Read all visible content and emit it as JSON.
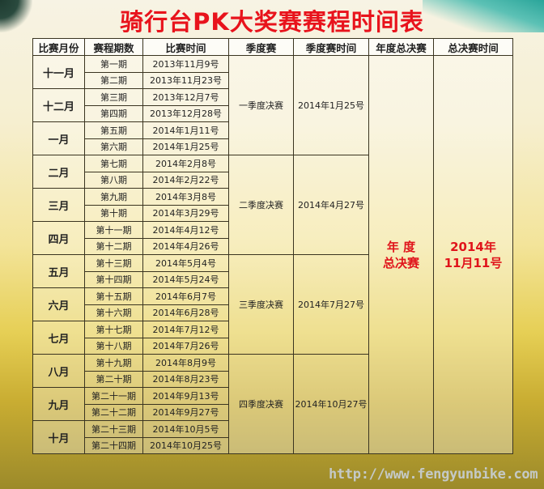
{
  "title": "骑行台PK大奖赛赛程时间表",
  "headers": [
    "比赛月份",
    "赛程期数",
    "比赛时间",
    "季度赛",
    "季度赛时间",
    "年度总决赛",
    "总决赛时间"
  ],
  "months": [
    {
      "month": "十一月",
      "rounds": [
        [
          "第一期",
          "2013年11月9号"
        ],
        [
          "第二期",
          "2013年11月23号"
        ]
      ]
    },
    {
      "month": "十二月",
      "rounds": [
        [
          "第三期",
          "2013年12月7号"
        ],
        [
          "第四期",
          "2013年12月28号"
        ]
      ]
    },
    {
      "month": "一月",
      "rounds": [
        [
          "第五期",
          "2014年1月11号"
        ],
        [
          "第六期",
          "2014年1月25号"
        ]
      ]
    },
    {
      "month": "二月",
      "rounds": [
        [
          "第七期",
          "2014年2月8号"
        ],
        [
          "第八期",
          "2014年2月22号"
        ]
      ]
    },
    {
      "month": "三月",
      "rounds": [
        [
          "第九期",
          "2014年3月8号"
        ],
        [
          "第十期",
          "2014年3月29号"
        ]
      ]
    },
    {
      "month": "四月",
      "rounds": [
        [
          "第十一期",
          "2014年4月12号"
        ],
        [
          "第十二期",
          "2014年4月26号"
        ]
      ]
    },
    {
      "month": "五月",
      "rounds": [
        [
          "第十三期",
          "2014年5月4号"
        ],
        [
          "第十四期",
          "2014年5月24号"
        ]
      ]
    },
    {
      "month": "六月",
      "rounds": [
        [
          "第十五期",
          "2014年6月7号"
        ],
        [
          "第十六期",
          "2014年6月28号"
        ]
      ]
    },
    {
      "month": "七月",
      "rounds": [
        [
          "第十七期",
          "2014年7月12号"
        ],
        [
          "第十八期",
          "2014年7月26号"
        ]
      ]
    },
    {
      "month": "八月",
      "rounds": [
        [
          "第十九期",
          "2014年8月9号"
        ],
        [
          "第二十期",
          "2014年8月23号"
        ]
      ]
    },
    {
      "month": "九月",
      "rounds": [
        [
          "第二十一期",
          "2014年9月13号"
        ],
        [
          "第二十二期",
          "2014年9月27号"
        ]
      ]
    },
    {
      "month": "十月",
      "rounds": [
        [
          "第二十三期",
          "2014年10月5号"
        ],
        [
          "第二十四期",
          "2014年10月25号"
        ]
      ]
    }
  ],
  "seasons": [
    {
      "name": "一季度决赛",
      "date": "2014年1月25号"
    },
    {
      "name": "二季度决赛",
      "date": "2014年4月27号"
    },
    {
      "name": "三季度决赛",
      "date": "2014年7月27号"
    },
    {
      "name": "四季度决赛",
      "date": "2014年10月27号"
    }
  ],
  "final": {
    "name_line1": "年 度",
    "name_line2": "总决赛",
    "date_line1": "2014年",
    "date_line2": "11月11号"
  },
  "watermark": "http://www.fengyunbike.com",
  "colors": {
    "title": "#e8131c",
    "final": "#e0141b"
  }
}
